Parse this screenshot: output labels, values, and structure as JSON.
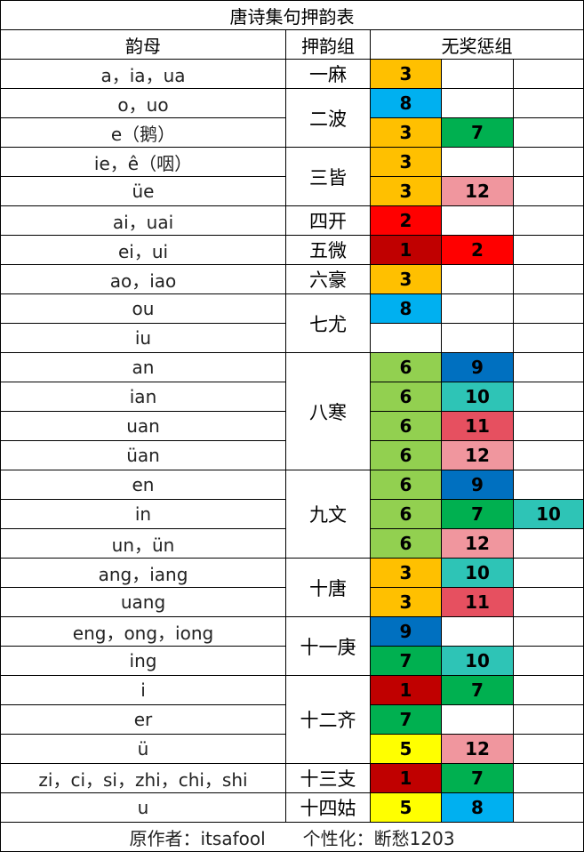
{
  "title": "唐诗集句押韵表",
  "headers": {
    "yunmu": "韵母",
    "group": "押韵组",
    "penalty": "无奖惩组"
  },
  "footer": {
    "author": "原作者：itsafool",
    "custom": "个性化：断愁1203"
  },
  "colors": {
    "1": "#c00000",
    "2": "#ff0000",
    "3": "#ffc000",
    "5": "#ffff00",
    "6": "#92d050",
    "7": "#00b050",
    "8": "#00b0f0",
    "9": "#0070c0",
    "10": "#2ec4b6",
    "11": "#e65060",
    "12": "#f0969e"
  },
  "rows": [
    {
      "yunmu": "a，ia，ua",
      "group": "一麻",
      "span": 1,
      "nums": [
        "3",
        "",
        ""
      ]
    },
    {
      "yunmu": "o，uo",
      "group": "二波",
      "span": 2,
      "nums": [
        "8",
        "",
        ""
      ]
    },
    {
      "yunmu": "e（鹅）",
      "nums": [
        "3",
        "7",
        ""
      ]
    },
    {
      "yunmu": "ie，ê（咽）",
      "group": "三皆",
      "span": 2,
      "nums": [
        "3",
        "",
        ""
      ]
    },
    {
      "yunmu": "üe",
      "nums": [
        "3",
        "12",
        ""
      ]
    },
    {
      "yunmu": "ai，uai",
      "group": "四开",
      "span": 1,
      "nums": [
        "2",
        "",
        ""
      ]
    },
    {
      "yunmu": "ei，ui",
      "group": "五微",
      "span": 1,
      "nums": [
        "1",
        "2",
        ""
      ]
    },
    {
      "yunmu": "ao，iao",
      "group": "六豪",
      "span": 1,
      "nums": [
        "3",
        "",
        ""
      ]
    },
    {
      "yunmu": "ou",
      "group": "七尤",
      "span": 2,
      "nums": [
        "8",
        "",
        ""
      ]
    },
    {
      "yunmu": "iu",
      "nums": [
        "",
        "",
        ""
      ]
    },
    {
      "yunmu": "an",
      "group": "八寒",
      "span": 4,
      "nums": [
        "6",
        "9",
        ""
      ]
    },
    {
      "yunmu": "ian",
      "nums": [
        "6",
        "10",
        ""
      ]
    },
    {
      "yunmu": "uan",
      "nums": [
        "6",
        "11",
        ""
      ]
    },
    {
      "yunmu": "üan",
      "nums": [
        "6",
        "12",
        ""
      ]
    },
    {
      "yunmu": "en",
      "group": "九文",
      "span": 3,
      "nums": [
        "6",
        "9",
        ""
      ]
    },
    {
      "yunmu": "in",
      "nums": [
        "6",
        "7",
        "10"
      ]
    },
    {
      "yunmu": "un，ün",
      "nums": [
        "6",
        "12",
        ""
      ]
    },
    {
      "yunmu": "ang，iang",
      "group": "十唐",
      "span": 2,
      "nums": [
        "3",
        "10",
        ""
      ]
    },
    {
      "yunmu": "uang",
      "nums": [
        "3",
        "11",
        ""
      ]
    },
    {
      "yunmu": "eng，ong，iong",
      "group": "十一庚",
      "span": 2,
      "nums": [
        "9",
        "",
        ""
      ]
    },
    {
      "yunmu": "ing",
      "nums": [
        "7",
        "10",
        ""
      ]
    },
    {
      "yunmu": "i",
      "group": "十二齐",
      "span": 3,
      "nums": [
        "1",
        "7",
        ""
      ]
    },
    {
      "yunmu": "er",
      "nums": [
        "7",
        "",
        ""
      ]
    },
    {
      "yunmu": "ü",
      "nums": [
        "5",
        "12",
        ""
      ]
    },
    {
      "yunmu": "zi，ci，si，zhi，chi，shi",
      "group": "十三支",
      "span": 1,
      "nums": [
        "1",
        "7",
        ""
      ]
    },
    {
      "yunmu": "u",
      "group": "十四姑",
      "span": 1,
      "nums": [
        "5",
        "8",
        ""
      ]
    }
  ]
}
